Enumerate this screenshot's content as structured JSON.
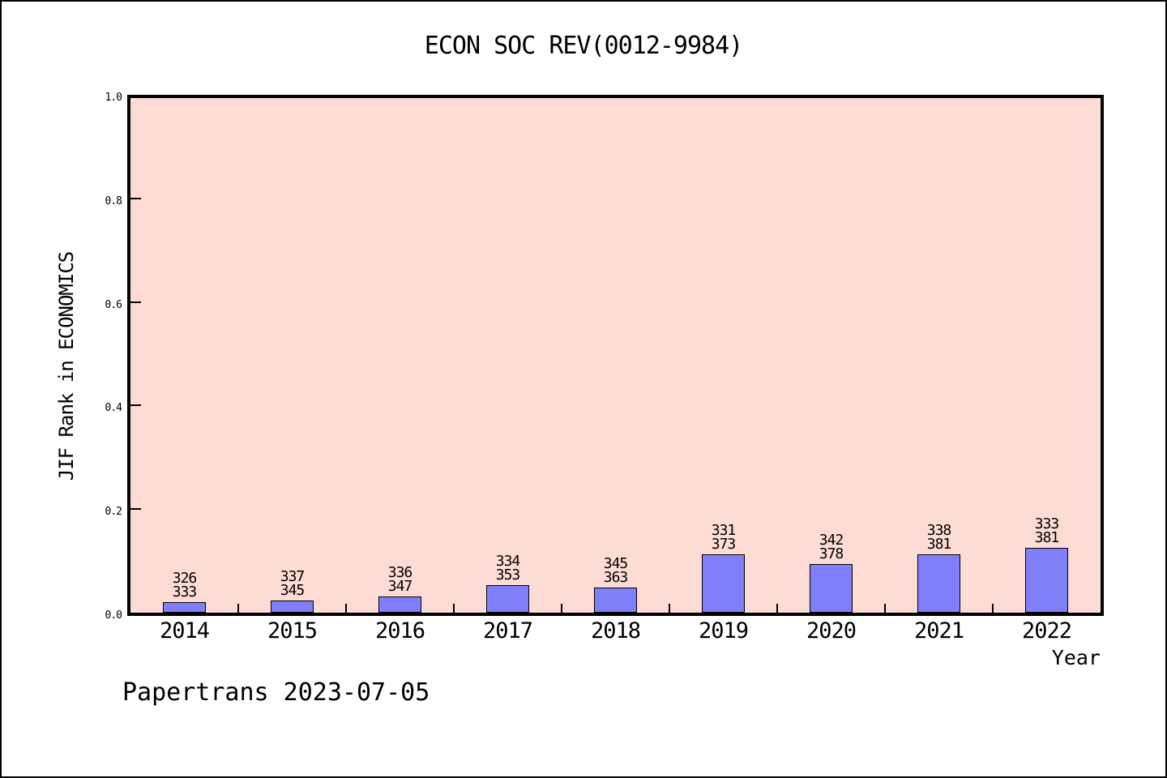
{
  "chart_data": {
    "type": "bar",
    "title": "ECON SOC REV(0012-9984)",
    "xlabel": "Year",
    "ylabel": "JIF Rank in ECONOMICS",
    "footer": "Papertrans 2023-07-05",
    "ylim": [
      0.0,
      1.0
    ],
    "grid": false,
    "legend_position": "none",
    "y_ticks": [
      "0.0",
      "0.2",
      "0.4",
      "0.6",
      "0.8",
      "1.0"
    ],
    "categories": [
      "2014",
      "2015",
      "2016",
      "2017",
      "2018",
      "2019",
      "2020",
      "2021",
      "2022"
    ],
    "bars": [
      {
        "year": "2014",
        "rank": 326,
        "total": 333,
        "value": 0.021
      },
      {
        "year": "2015",
        "rank": 337,
        "total": 345,
        "value": 0.0232
      },
      {
        "year": "2016",
        "rank": 336,
        "total": 347,
        "value": 0.0317
      },
      {
        "year": "2017",
        "rank": 334,
        "total": 353,
        "value": 0.0538
      },
      {
        "year": "2018",
        "rank": 345,
        "total": 363,
        "value": 0.0496
      },
      {
        "year": "2019",
        "rank": 331,
        "total": 373,
        "value": 0.1126
      },
      {
        "year": "2020",
        "rank": 342,
        "total": 378,
        "value": 0.0952
      },
      {
        "year": "2021",
        "rank": 338,
        "total": 381,
        "value": 0.1129
      },
      {
        "year": "2022",
        "rank": 333,
        "total": 381,
        "value": 0.126
      }
    ],
    "colors": {
      "bar_fill": "#7f7ffa",
      "bar_edge": "#000000",
      "plot_background": "#fcdcd4",
      "figure_background": "#ffffff",
      "text": "#000000"
    }
  }
}
